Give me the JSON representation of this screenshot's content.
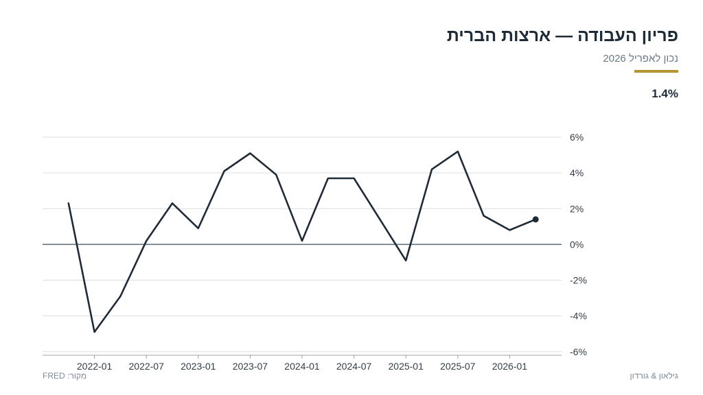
{
  "header": {
    "title": "פריון העבודה — ארצות הברית",
    "subtitle": "נכון לאפריל 2026",
    "latest_value": "1.4%"
  },
  "footer": {
    "source": "מקור: FRED",
    "brand": "גילאון & גורדון"
  },
  "colors": {
    "line": "#1e2a36",
    "accent": "#b5952f",
    "grid": "#d9dde1",
    "zero_line": "#5a6873"
  },
  "chart_data": {
    "type": "line",
    "title": "פריון העבודה — ארצות הברית",
    "x_tick_labels": [
      "2022-01",
      "2022-07",
      "2023-01",
      "2023-07",
      "2024-01",
      "2024-07",
      "2025-01",
      "2025-07",
      "2026-01"
    ],
    "y_tick_labels": [
      "6%",
      "4%",
      "2%",
      "0%",
      "-2%",
      "-4%",
      "-6%"
    ],
    "y_ticks": [
      6,
      4,
      2,
      0,
      -2,
      -4,
      -6
    ],
    "ylim": [
      -6.2,
      6
    ],
    "xlim": [
      "2021-07",
      "2026-07"
    ],
    "y_axis_side": "right",
    "grid": true,
    "series": [
      {
        "x": [
          "2021-10",
          "2022-01",
          "2022-04",
          "2022-07",
          "2022-10",
          "2023-01",
          "2023-04",
          "2023-07",
          "2023-10",
          "2024-01",
          "2024-04",
          "2024-07",
          "2024-10",
          "2025-01",
          "2025-04",
          "2025-07",
          "2025-10",
          "2026-01",
          "2026-04"
        ],
        "values": [
          2.3,
          -4.9,
          -2.9,
          0.2,
          2.3,
          0.9,
          4.1,
          5.1,
          3.9,
          0.2,
          3.7,
          3.7,
          1.4,
          -0.9,
          4.2,
          5.2,
          1.6,
          0.8,
          1.4
        ]
      }
    ]
  }
}
